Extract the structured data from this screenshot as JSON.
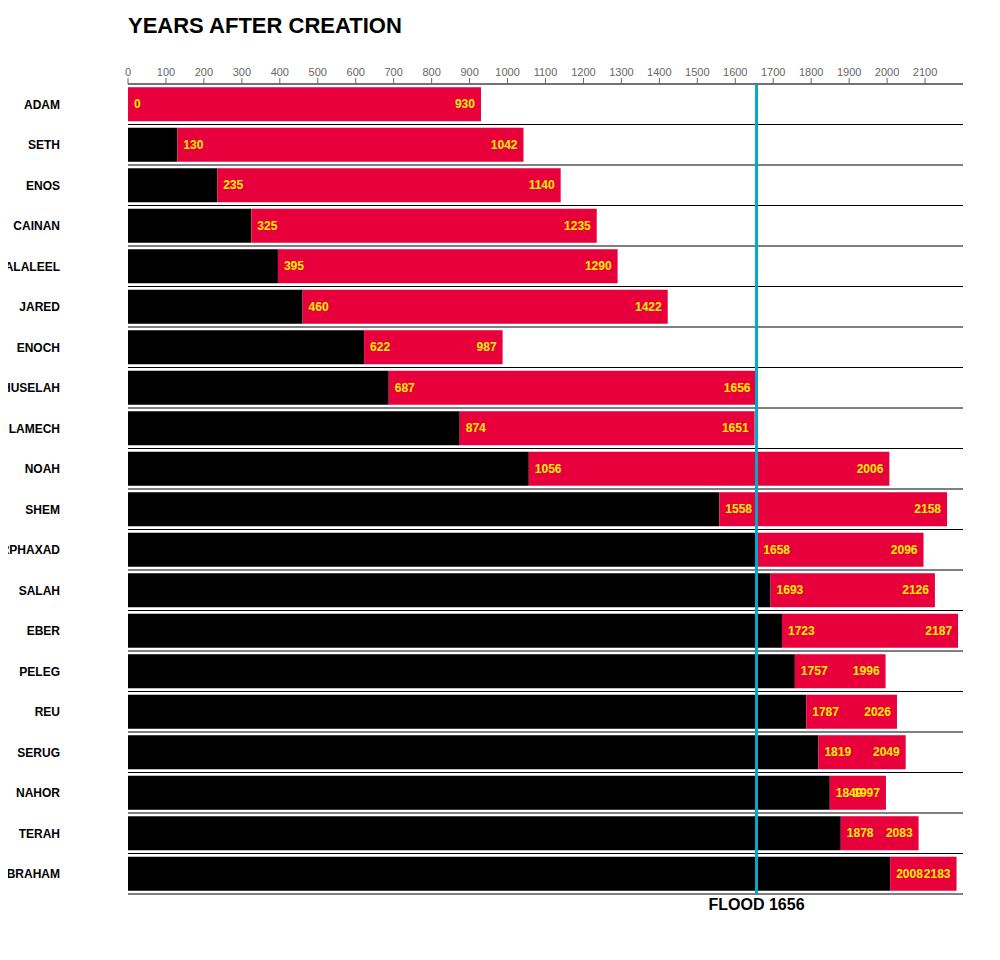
{
  "chart_data": {
    "type": "bar",
    "orientation": "horizontal",
    "title": "YEARS AFTER CREATION",
    "categories": [
      "ADAM",
      "SETH",
      "ENOS",
      "CAINAN",
      "MAHALALEEL",
      "JARED",
      "ENOCH",
      "METHUSELAH",
      "LAMECH",
      "NOAH",
      "SHEM",
      "ARPHAXAD",
      "SALAH",
      "EBER",
      "PELEG",
      "REU",
      "SERUG",
      "NAHOR",
      "TERAH",
      "ABRAHAM"
    ],
    "birth": [
      0,
      130,
      235,
      325,
      395,
      460,
      622,
      687,
      874,
      1056,
      1558,
      1658,
      1693,
      1723,
      1757,
      1787,
      1819,
      1849,
      1878,
      2008
    ],
    "death": [
      930,
      1042,
      1140,
      1235,
      1290,
      1422,
      987,
      1656,
      1651,
      2006,
      2158,
      2096,
      2126,
      2187,
      1996,
      2026,
      2049,
      1997,
      2083,
      2183
    ],
    "fill_end": [
      0,
      130,
      235,
      325,
      395,
      460,
      622,
      687,
      874,
      1056,
      1558,
      1658,
      1693,
      1723,
      1757,
      1787,
      1819,
      1849,
      1878,
      2008
    ],
    "color": "#e8003c",
    "data_labels": true,
    "data_label_color": "#ffee00",
    "xlim": [
      0,
      2200
    ],
    "xticks": [
      0,
      100,
      200,
      300,
      400,
      500,
      600,
      700,
      800,
      900,
      1000,
      1100,
      1200,
      1300,
      1400,
      1500,
      1600,
      1700,
      1800,
      1900,
      2000,
      2100
    ],
    "grid": true,
    "annotations": [
      {
        "type": "vline",
        "x": 1656,
        "label": "FLOOD 1656",
        "color": "#00aacc"
      }
    ]
  }
}
